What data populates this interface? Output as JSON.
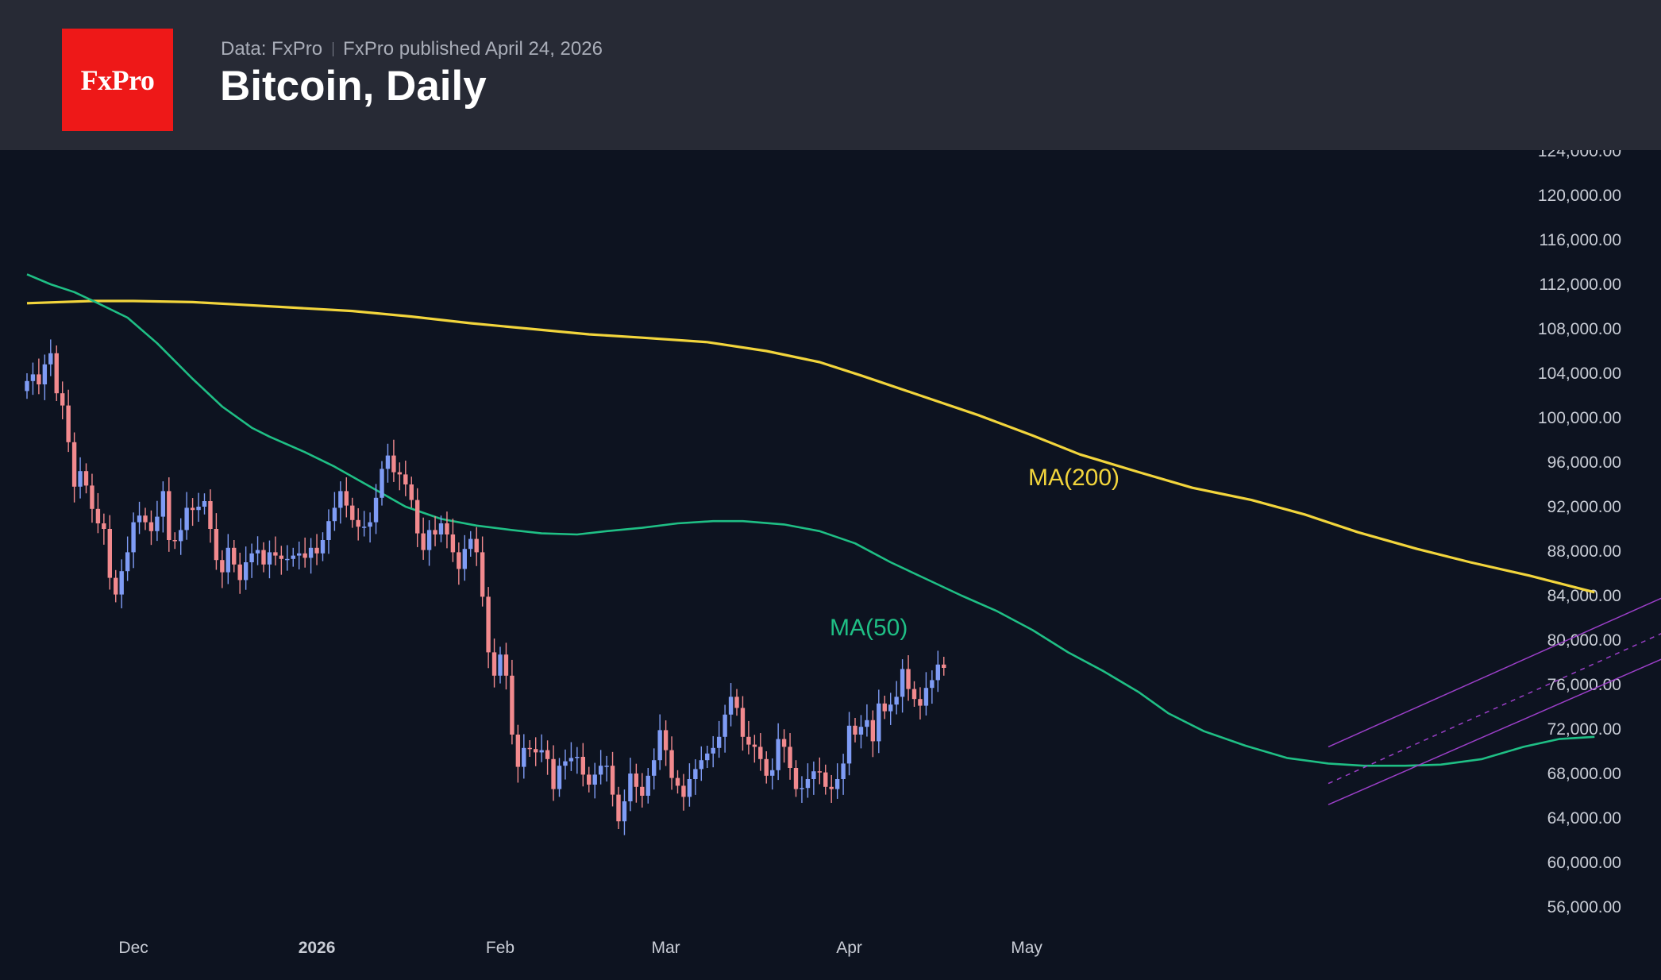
{
  "header": {
    "logo_text": "FxPro",
    "source": "Data: FxPro",
    "published": "FxPro published April 24, 2026",
    "title": "Bitcoin, Daily"
  },
  "colors": {
    "background": "#0d1320",
    "header": "#272a35",
    "logo": "#ee1818",
    "up_candle": "#7f9cf5",
    "down_candle": "#f28a8e",
    "ma50": "#1fbf85",
    "ma200": "#f2d53c",
    "channel": "#9b3fc8"
  },
  "chart_data": {
    "type": "candlestick",
    "title": "Bitcoin, Daily",
    "x_range": [
      "2025-11-13",
      "2026-05-31"
    ],
    "ylim": [
      54000,
      124800
    ],
    "y_ticks": [
      "124,000.00",
      "120,000.00",
      "116,000.00",
      "112,000.00",
      "108,000.00",
      "104,000.00",
      "100,000.00",
      "96,000.00",
      "92,000.00",
      "88,000.00",
      "84,000.00",
      "80,000.00",
      "76,000.00",
      "72,000.00",
      "68,000.00",
      "64,000.00",
      "60,000.00",
      "56,000.00"
    ],
    "y_tick_values": [
      124000,
      120000,
      116000,
      112000,
      108000,
      104000,
      100000,
      96000,
      92000,
      88000,
      84000,
      80000,
      76000,
      72000,
      68000,
      64000,
      60000,
      56000
    ],
    "x_ticks": [
      {
        "label": "Dec",
        "date": "2025-12-01",
        "bold": false
      },
      {
        "label": "2026",
        "date": "2026-01-01",
        "bold": true
      },
      {
        "label": "Feb",
        "date": "2026-02-01",
        "bold": false
      },
      {
        "label": "Mar",
        "date": "2026-03-01",
        "bold": false
      },
      {
        "label": "Apr",
        "date": "2026-04-01",
        "bold": false
      },
      {
        "label": "May",
        "date": "2026-05-01",
        "bold": false
      }
    ],
    "first_date": "2025-11-13",
    "closes": [
      103300,
      103900,
      103000,
      104800,
      105800,
      102200,
      101100,
      97800,
      93800,
      95200,
      93900,
      91800,
      90500,
      90000,
      85600,
      84100,
      86200,
      87900,
      90600,
      91200,
      90600,
      89800,
      91100,
      93400,
      89000,
      88900,
      89900,
      91900,
      91700,
      92000,
      92500,
      90000,
      87200,
      86100,
      88300,
      86800,
      85400,
      87000,
      87800,
      88100,
      86800,
      87900,
      87600,
      87300,
      87300,
      87600,
      87800,
      87400,
      88300,
      87800,
      89000,
      90700,
      91900,
      93400,
      92100,
      90800,
      90200,
      90200,
      90600,
      92800,
      95400,
      96600,
      95100,
      94900,
      94000,
      92600,
      89600,
      88100,
      89900,
      89500,
      90500,
      89500,
      87900,
      86400,
      88200,
      89100,
      87900,
      83900,
      78900,
      76800,
      78700,
      76800,
      71500,
      68600,
      70300,
      70200,
      69900,
      70100,
      69300,
      66600,
      68700,
      69100,
      69400,
      69500,
      67900,
      67000,
      67900,
      68700,
      68700,
      66100,
      63700,
      65500,
      68000,
      66800,
      66000,
      67800,
      69200,
      71900,
      70100,
      67600,
      66900,
      65900,
      67500,
      68400,
      69200,
      69800,
      70300,
      71300,
      73300,
      74900,
      73900,
      71300,
      70600,
      70400,
      69300,
      67800,
      68300,
      71100,
      70400,
      68500,
      66600,
      66700,
      67500,
      68200,
      68100,
      66800,
      66600,
      67500,
      68900,
      72300,
      71500,
      72200,
      72800,
      70900,
      74300,
      73600,
      74200,
      74900,
      77400,
      75600,
      74700,
      74100,
      75700,
      76400,
      77800,
      77500
    ],
    "ma50": [
      [
        0,
        112900
      ],
      [
        4,
        112000
      ],
      [
        8,
        111300
      ],
      [
        12,
        110300
      ],
      [
        17,
        109000
      ],
      [
        22,
        106700
      ],
      [
        28,
        103500
      ],
      [
        33,
        101000
      ],
      [
        38,
        99100
      ],
      [
        41,
        98300
      ],
      [
        47,
        96900
      ],
      [
        52,
        95600
      ],
      [
        58,
        93800
      ],
      [
        64,
        92000
      ],
      [
        70,
        90900
      ],
      [
        76,
        90300
      ],
      [
        82,
        89900
      ],
      [
        87,
        89600
      ],
      [
        93,
        89500
      ],
      [
        98,
        89800
      ],
      [
        104,
        90100
      ],
      [
        110,
        90500
      ],
      [
        116,
        90700
      ],
      [
        121,
        90700
      ],
      [
        128,
        90400
      ],
      [
        134,
        89800
      ],
      [
        140,
        88700
      ],
      [
        146,
        87000
      ],
      [
        152,
        85500
      ],
      [
        158,
        84000
      ],
      [
        164,
        82600
      ],
      [
        170,
        80900
      ],
      [
        176,
        78900
      ],
      [
        182,
        77200
      ],
      [
        188,
        75300
      ],
      [
        193,
        73400
      ],
      [
        199,
        71800
      ],
      [
        206,
        70500
      ],
      [
        213,
        69400
      ],
      [
        220,
        68900
      ],
      [
        226,
        68700
      ],
      [
        233,
        68700
      ],
      [
        239,
        68800
      ],
      [
        246,
        69300
      ],
      [
        253,
        70400
      ],
      [
        259,
        71100
      ],
      [
        265,
        71300
      ]
    ],
    "ma200": [
      [
        0,
        110300
      ],
      [
        11,
        110500
      ],
      [
        18,
        110500
      ],
      [
        28,
        110400
      ],
      [
        35,
        110200
      ],
      [
        45,
        109900
      ],
      [
        55,
        109600
      ],
      [
        65,
        109100
      ],
      [
        75,
        108500
      ],
      [
        85,
        108000
      ],
      [
        95,
        107500
      ],
      [
        104,
        107200
      ],
      [
        115,
        106800
      ],
      [
        125,
        106000
      ],
      [
        134,
        105000
      ],
      [
        141,
        103800
      ],
      [
        151,
        102000
      ],
      [
        161,
        100200
      ],
      [
        170,
        98400
      ],
      [
        178,
        96700
      ],
      [
        188,
        95100
      ],
      [
        197,
        93700
      ],
      [
        207,
        92600
      ],
      [
        216,
        91300
      ],
      [
        225,
        89700
      ],
      [
        235,
        88200
      ],
      [
        244,
        87000
      ],
      [
        254,
        85800
      ],
      [
        265,
        84300
      ]
    ],
    "ma_labels": [
      "MA(200)",
      "MA(50)"
    ],
    "channel": {
      "upper": [
        [
          220,
          70400
        ],
        [
          316,
          93200
        ]
      ],
      "middle": [
        [
          220,
          67100
        ],
        [
          316,
          90100
        ]
      ],
      "lower": [
        [
          220,
          65200
        ],
        [
          316,
          87500
        ]
      ]
    }
  }
}
